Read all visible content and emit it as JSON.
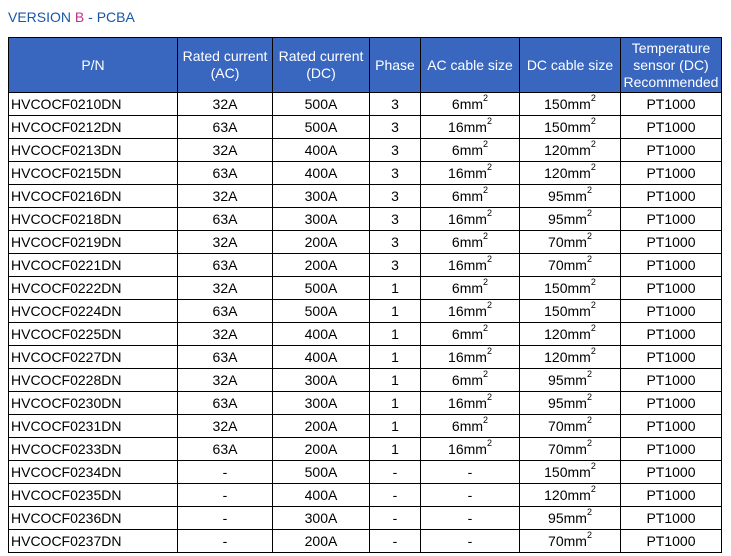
{
  "title": {
    "pre": "VERSION ",
    "mid": "B",
    "post": " - PCBA"
  },
  "headers": [
    "P/N",
    "Rated current (AC)",
    "Rated current (DC)",
    "Phase",
    "AC cable size",
    "DC cable size",
    "Temperature sensor (DC) Recommended"
  ],
  "rows": [
    {
      "pn": "HVCOCF0210DN",
      "ac": "32A",
      "dc": "500A",
      "phase": "3",
      "acc": "6mm",
      "acc_sup": "2",
      "dcc": "150mm",
      "dcc_sup": "2",
      "temp": "PT1000"
    },
    {
      "pn": "HVCOCF0212DN",
      "ac": "63A",
      "dc": "500A",
      "phase": "3",
      "acc": "16mm",
      "acc_sup": "2",
      "dcc": "150mm",
      "dcc_sup": "2",
      "temp": "PT1000"
    },
    {
      "pn": "HVCOCF0213DN",
      "ac": "32A",
      "dc": "400A",
      "phase": "3",
      "acc": "6mm",
      "acc_sup": "2",
      "dcc": "120mm",
      "dcc_sup": "2",
      "temp": "PT1000"
    },
    {
      "pn": "HVCOCF0215DN",
      "ac": "63A",
      "dc": "400A",
      "phase": "3",
      "acc": "16mm",
      "acc_sup": "2",
      "dcc": "120mm",
      "dcc_sup": "2",
      "temp": "PT1000"
    },
    {
      "pn": "HVCOCF0216DN",
      "ac": "32A",
      "dc": "300A",
      "phase": "3",
      "acc": "6mm",
      "acc_sup": "2",
      "dcc": "95mm",
      "dcc_sup": "2",
      "temp": "PT1000"
    },
    {
      "pn": "HVCOCF0218DN",
      "ac": "63A",
      "dc": "300A",
      "phase": "3",
      "acc": "16mm",
      "acc_sup": "2",
      "dcc": "95mm",
      "dcc_sup": "2",
      "temp": "PT1000"
    },
    {
      "pn": "HVCOCF0219DN",
      "ac": "32A",
      "dc": "200A",
      "phase": "3",
      "acc": "6mm",
      "acc_sup": "2",
      "dcc": "70mm",
      "dcc_sup": "2",
      "temp": "PT1000"
    },
    {
      "pn": "HVCOCF0221DN",
      "ac": "63A",
      "dc": "200A",
      "phase": "3",
      "acc": "16mm",
      "acc_sup": "2",
      "dcc": "70mm",
      "dcc_sup": "2",
      "temp": "PT1000"
    },
    {
      "pn": "HVCOCF0222DN",
      "ac": "32A",
      "dc": "500A",
      "phase": "1",
      "acc": "6mm",
      "acc_sup": "2",
      "dcc": "150mm",
      "dcc_sup": "2",
      "temp": "PT1000"
    },
    {
      "pn": "HVCOCF0224DN",
      "ac": "63A",
      "dc": "500A",
      "phase": "1",
      "acc": "16mm",
      "acc_sup": "2",
      "dcc": "150mm",
      "dcc_sup": "2",
      "temp": "PT1000"
    },
    {
      "pn": "HVCOCF0225DN",
      "ac": "32A",
      "dc": "400A",
      "phase": "1",
      "acc": "6mm",
      "acc_sup": "2",
      "dcc": "120mm",
      "dcc_sup": "2",
      "temp": "PT1000"
    },
    {
      "pn": "HVCOCF0227DN",
      "ac": "63A",
      "dc": "400A",
      "phase": "1",
      "acc": "16mm",
      "acc_sup": "2",
      "dcc": "120mm",
      "dcc_sup": "2",
      "temp": "PT1000"
    },
    {
      "pn": "HVCOCF0228DN",
      "ac": "32A",
      "dc": "300A",
      "phase": "1",
      "acc": "6mm",
      "acc_sup": "2",
      "dcc": "95mm",
      "dcc_sup": "2",
      "temp": "PT1000"
    },
    {
      "pn": "HVCOCF0230DN",
      "ac": "63A",
      "dc": "300A",
      "phase": "1",
      "acc": "16mm",
      "acc_sup": "2",
      "dcc": "95mm",
      "dcc_sup": "2",
      "temp": "PT1000"
    },
    {
      "pn": "HVCOCF0231DN",
      "ac": "32A",
      "dc": "200A",
      "phase": "1",
      "acc": "6mm",
      "acc_sup": "2",
      "dcc": "70mm",
      "dcc_sup": "2",
      "temp": "PT1000"
    },
    {
      "pn": "HVCOCF0233DN",
      "ac": "63A",
      "dc": "200A",
      "phase": "1",
      "acc": "16mm",
      "acc_sup": "2",
      "dcc": "70mm",
      "dcc_sup": "2",
      "temp": "PT1000"
    },
    {
      "pn": "HVCOCF0234DN",
      "ac": "-",
      "dc": "500A",
      "phase": "-",
      "acc": "-",
      "acc_sup": "",
      "dcc": "150mm",
      "dcc_sup": "2",
      "temp": "PT1000"
    },
    {
      "pn": "HVCOCF0235DN",
      "ac": "-",
      "dc": "400A",
      "phase": "-",
      "acc": "-",
      "acc_sup": "",
      "dcc": "120mm",
      "dcc_sup": "2",
      "temp": "PT1000"
    },
    {
      "pn": "HVCOCF0236DN",
      "ac": "-",
      "dc": "300A",
      "phase": "-",
      "acc": "-",
      "acc_sup": "",
      "dcc": "95mm",
      "dcc_sup": "2",
      "temp": "PT1000"
    },
    {
      "pn": "HVCOCF0237DN",
      "ac": "-",
      "dc": "200A",
      "phase": "-",
      "acc": "-",
      "acc_sup": "",
      "dcc": "70mm",
      "dcc_sup": "2",
      "temp": "PT1000"
    }
  ]
}
